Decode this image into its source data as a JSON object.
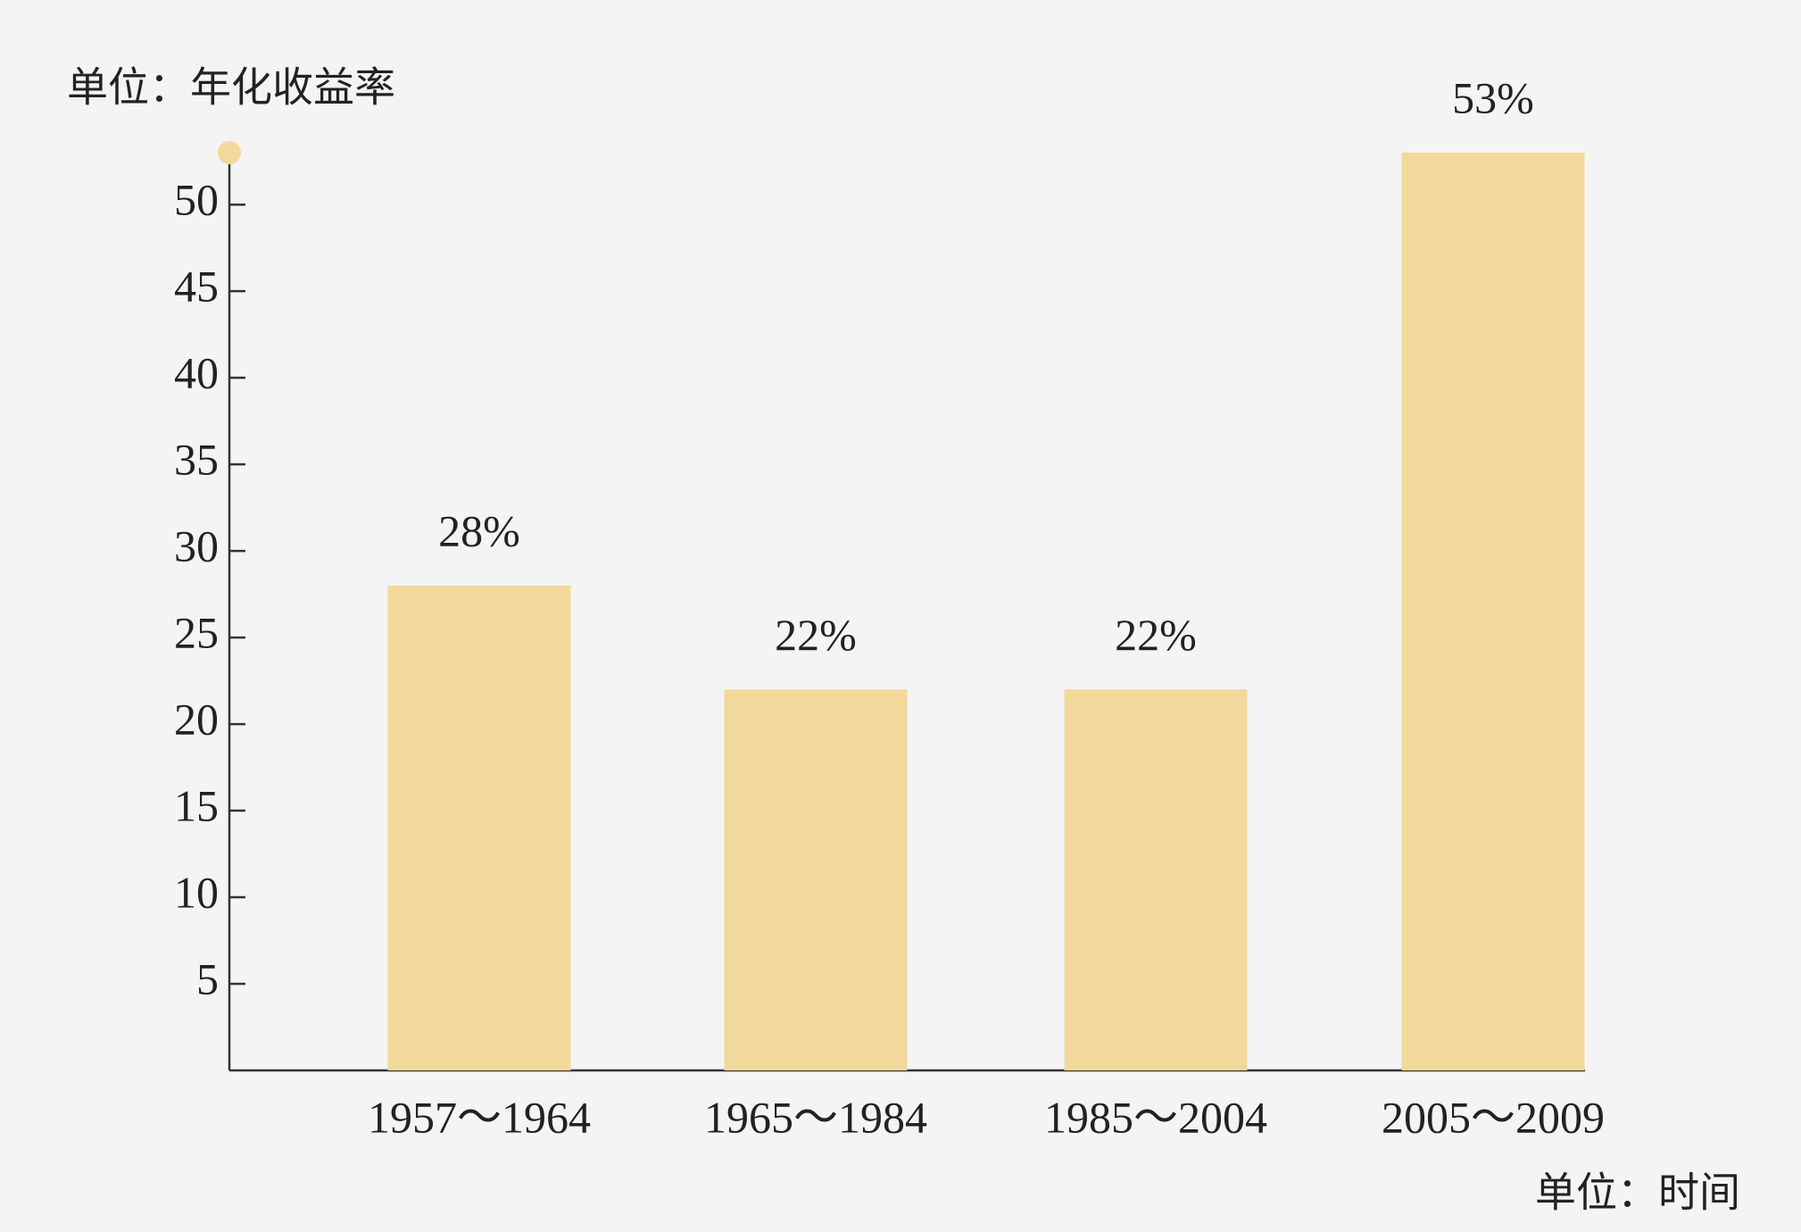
{
  "chart_data": {
    "type": "bar",
    "y_axis_label": "单位：年化收益率",
    "x_axis_label": "单位：时间",
    "categories": [
      "1957～1964",
      "1965～1984",
      "1985～2004",
      "2005～2009"
    ],
    "values": [
      28,
      22,
      22,
      53
    ],
    "value_labels": [
      "28%",
      "22%",
      "22%",
      "53%"
    ],
    "color": "#f2d99b",
    "ylim": [
      0,
      53
    ],
    "yticks": [
      5,
      10,
      15,
      20,
      25,
      30,
      35,
      40,
      45,
      50
    ],
    "grid": false
  }
}
